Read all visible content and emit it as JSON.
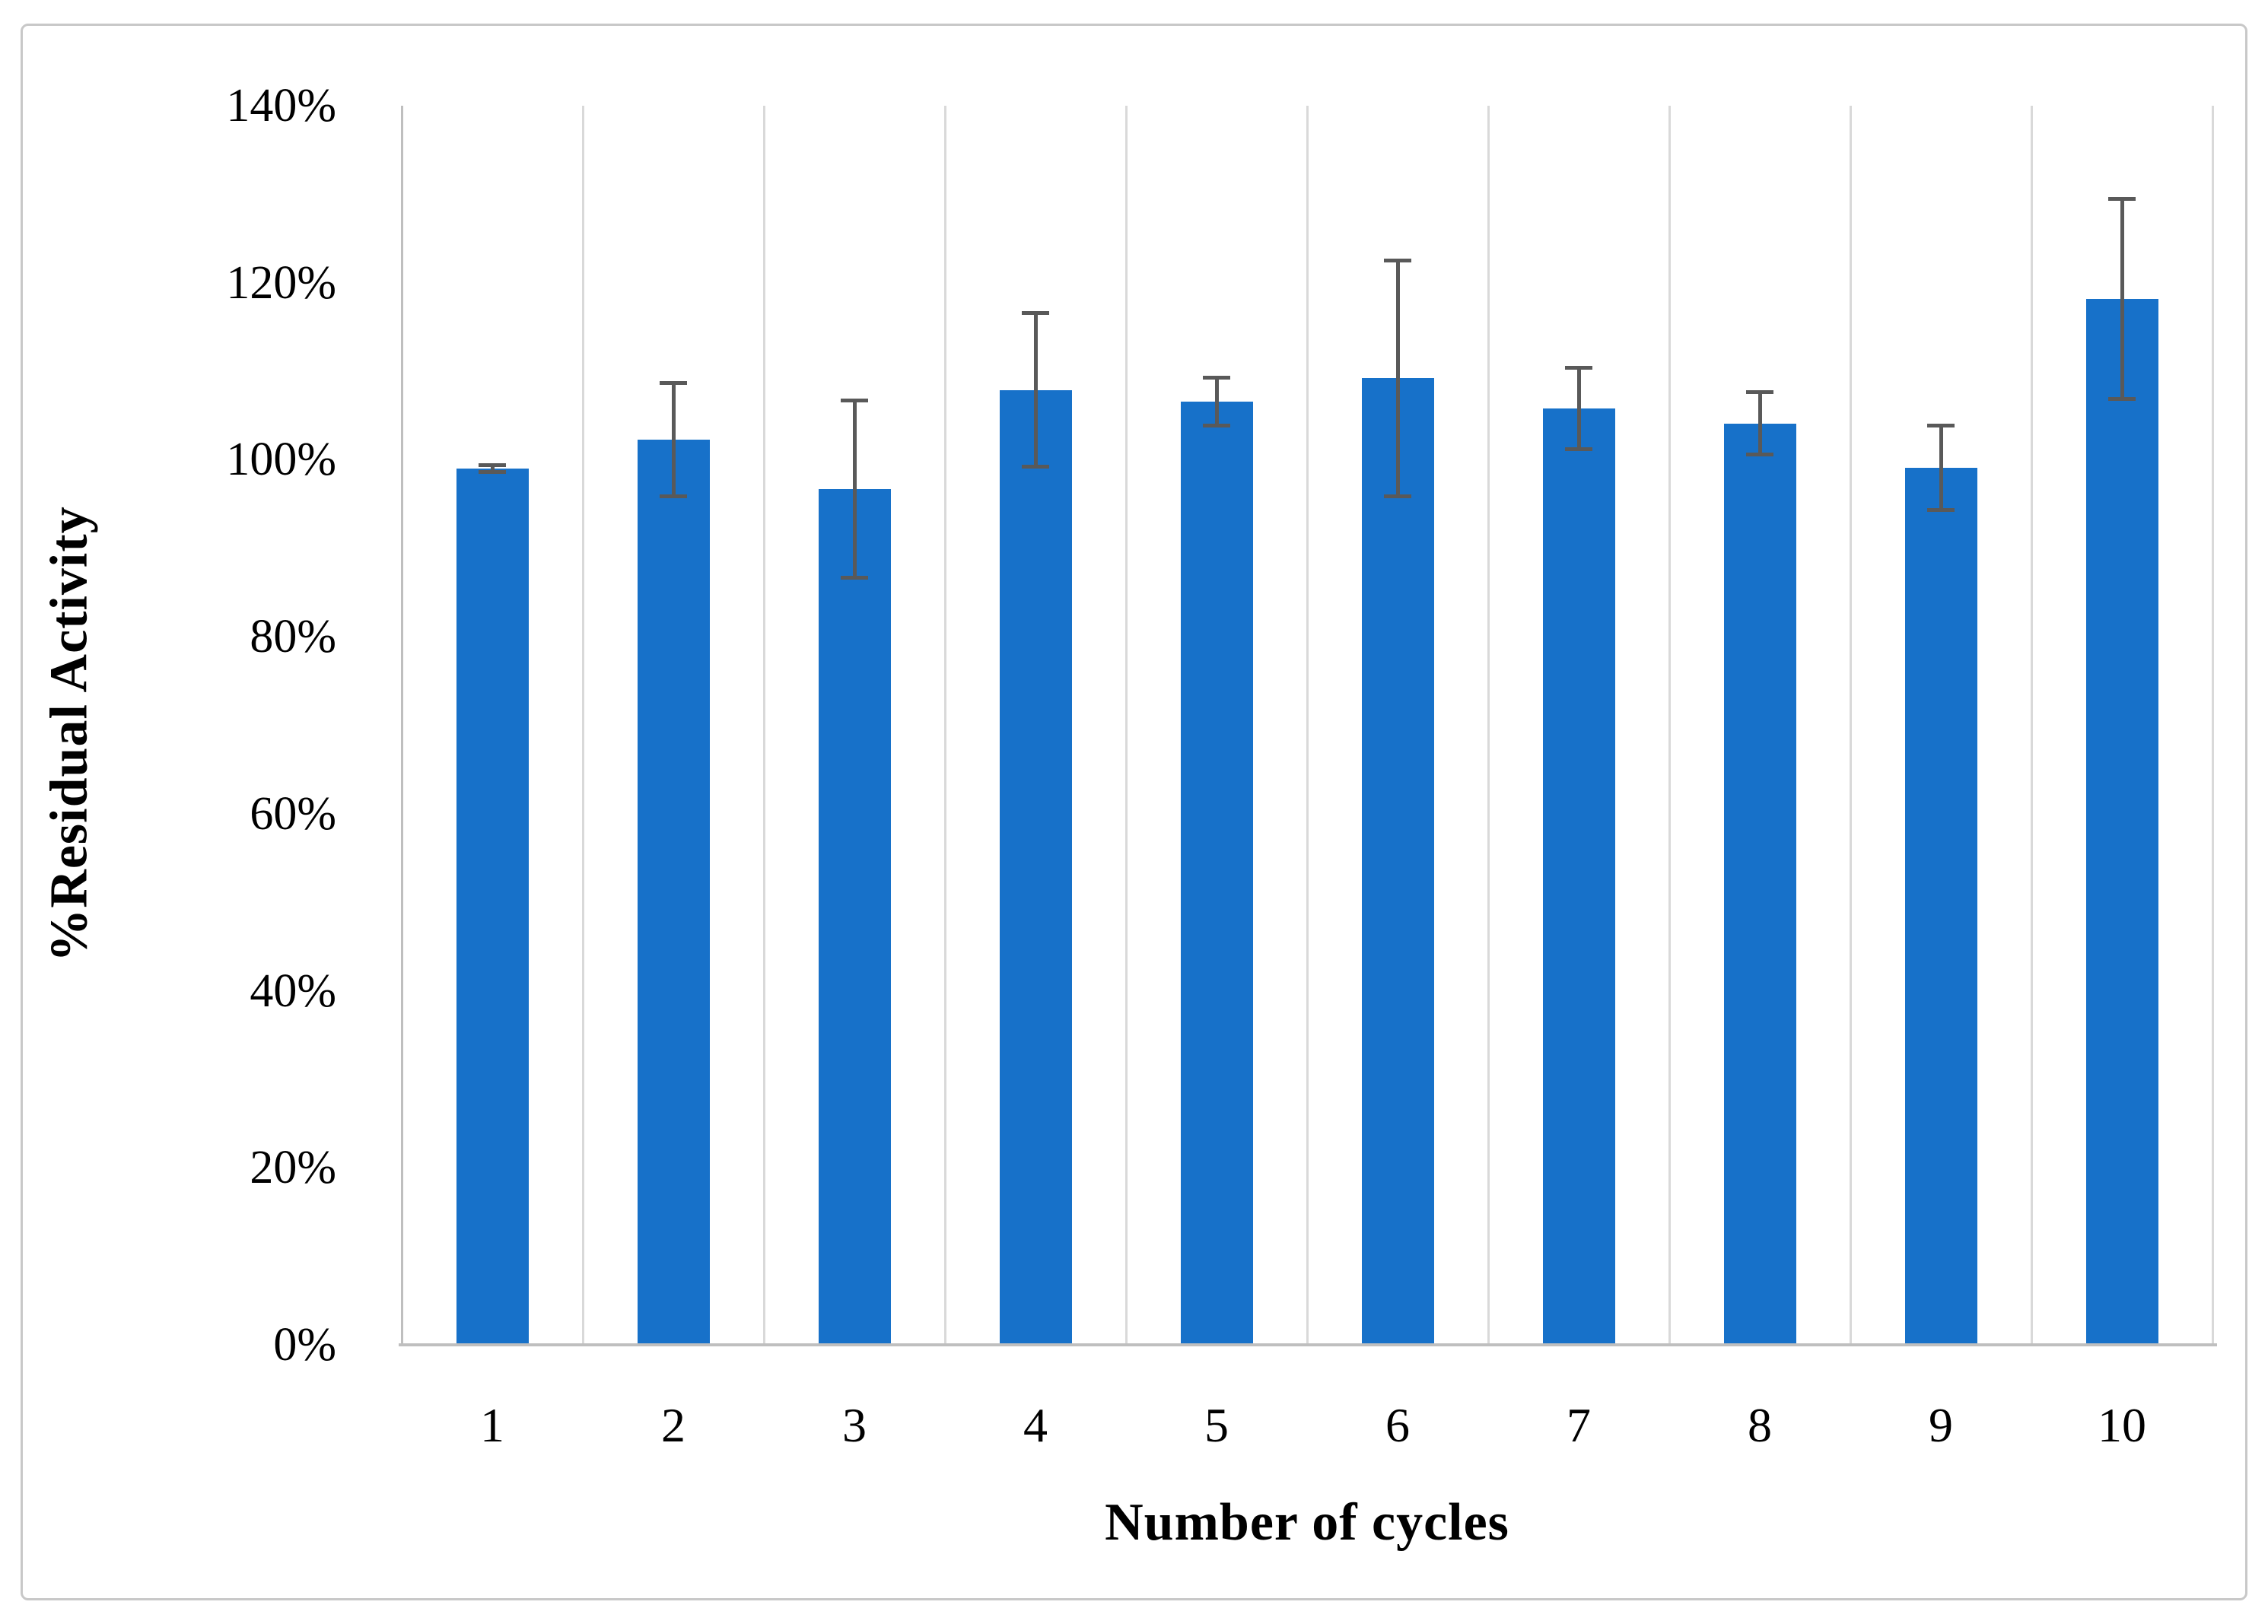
{
  "figure": {
    "border_color": "#c8c8c8",
    "background_color": "#ffffff"
  },
  "chart_data": {
    "type": "bar",
    "title": "",
    "xlabel": "Number of cycles",
    "ylabel": "%Residual Activity",
    "categories": [
      "1",
      "2",
      "3",
      "4",
      "5",
      "6",
      "7",
      "8",
      "9",
      "10"
    ],
    "values": [
      99.0,
      102.3,
      96.7,
      107.9,
      106.6,
      109.2,
      105.8,
      104.1,
      99.1,
      118.2
    ],
    "error_bars": [
      0.4,
      6.4,
      10.0,
      8.7,
      2.7,
      13.3,
      4.6,
      3.5,
      4.8,
      11.3
    ],
    "value_unit": "%",
    "ylim": [
      0,
      140
    ],
    "ytick_step": 20,
    "ytick_labels": [
      "0%",
      "20%",
      "40%",
      "60%",
      "80%",
      "100%",
      "120%",
      "140%"
    ],
    "grid": "vertical-category-boundaries",
    "legend": "none",
    "bar_color": "#1771c9",
    "error_bar_color": "#595959",
    "gridline_color": "#d9d9d9",
    "axis_line_color": "#bfbfbf"
  }
}
